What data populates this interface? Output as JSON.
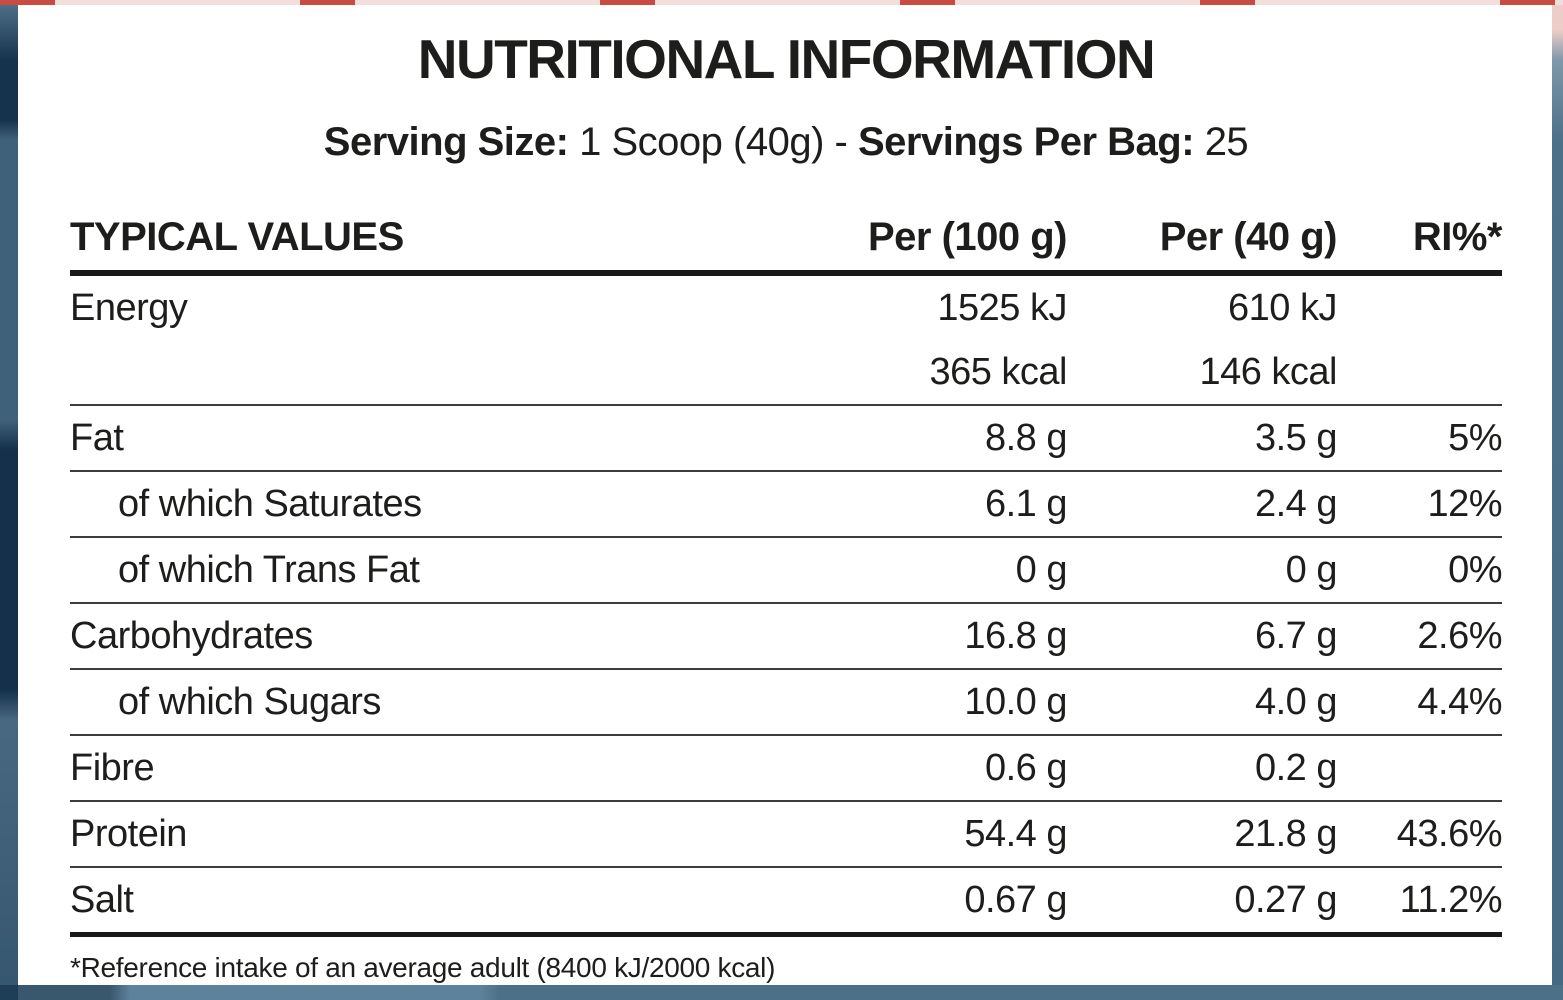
{
  "title": "NUTRITIONAL INFORMATION",
  "serving": {
    "label_1": "Serving Size:",
    "value_1": "1 Scoop (40g)",
    "dash": "-",
    "label_2": "Servings Per Bag:",
    "value_2": "25"
  },
  "table": {
    "headers": [
      "TYPICAL VALUES",
      "Per (100 g)",
      "Per (40 g)",
      "RI%*"
    ],
    "rows": [
      {
        "label": "Energy",
        "indent": false,
        "continuation": false,
        "per100": "1525 kJ",
        "per40": "610 kJ",
        "ri": ""
      },
      {
        "label": "",
        "indent": false,
        "continuation": true,
        "per100": "365 kcal",
        "per40": "146 kcal",
        "ri": ""
      },
      {
        "label": "Fat",
        "indent": false,
        "continuation": false,
        "per100": "8.8 g",
        "per40": "3.5 g",
        "ri": "5%"
      },
      {
        "label": "of which Saturates",
        "indent": true,
        "continuation": false,
        "per100": "6.1 g",
        "per40": "2.4 g",
        "ri": "12%"
      },
      {
        "label": "of which Trans Fat",
        "indent": true,
        "continuation": false,
        "per100": "0 g",
        "per40": "0 g",
        "ri": "0%"
      },
      {
        "label": "Carbohydrates",
        "indent": false,
        "continuation": false,
        "per100": "16.8 g",
        "per40": "6.7 g",
        "ri": "2.6%"
      },
      {
        "label": "of which Sugars",
        "indent": true,
        "continuation": false,
        "per100": "10.0 g",
        "per40": "4.0 g",
        "ri": "4.4%"
      },
      {
        "label": "Fibre",
        "indent": false,
        "continuation": false,
        "per100": "0.6 g",
        "per40": "0.2 g",
        "ri": ""
      },
      {
        "label": "Protein",
        "indent": false,
        "continuation": false,
        "per100": "54.4 g",
        "per40": "21.8 g",
        "ri": "43.6%"
      },
      {
        "label": "Salt",
        "indent": false,
        "continuation": false,
        "per100": "0.67 g",
        "per40": "0.27 g",
        "ri": "11.2%"
      }
    ]
  },
  "footnote": "*Reference intake of an average adult (8400 kJ/2000 kcal)",
  "colors": {
    "text": "#1d1d1b",
    "rule_thin": "#3c3c3b",
    "rule_thick": "#191919",
    "edge_navy_dark": "#14304a",
    "edge_slate": "#4c7088",
    "edge_strip_base": "#f3dedc",
    "edge_strip_accent": "#c94b41"
  }
}
